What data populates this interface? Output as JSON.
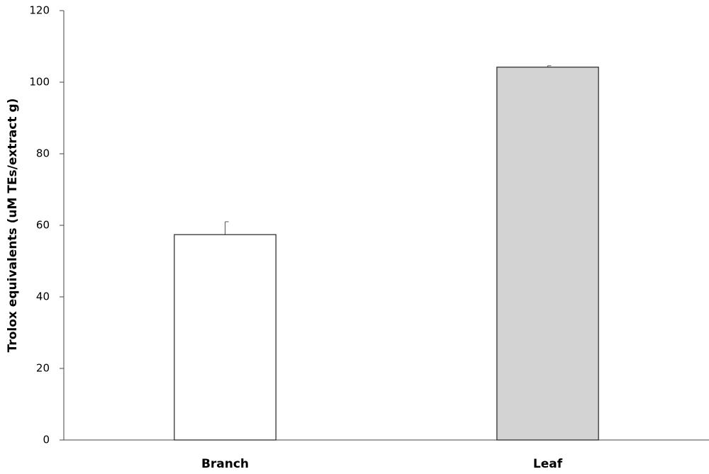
{
  "chart_data": {
    "type": "bar",
    "y_label": "Trolox equivalents (uM TEs/extract g)",
    "categories": [
      "Branch",
      "Leaf"
    ],
    "values": [
      57.4,
      104.2
    ],
    "errors": [
      3.6,
      0.4
    ],
    "colors": [
      "#ffffff",
      "#d3d3d3"
    ],
    "ylim": [
      0,
      120
    ],
    "yticks": [
      0,
      20,
      40,
      60,
      80,
      100,
      120
    ],
    "grid": false
  }
}
